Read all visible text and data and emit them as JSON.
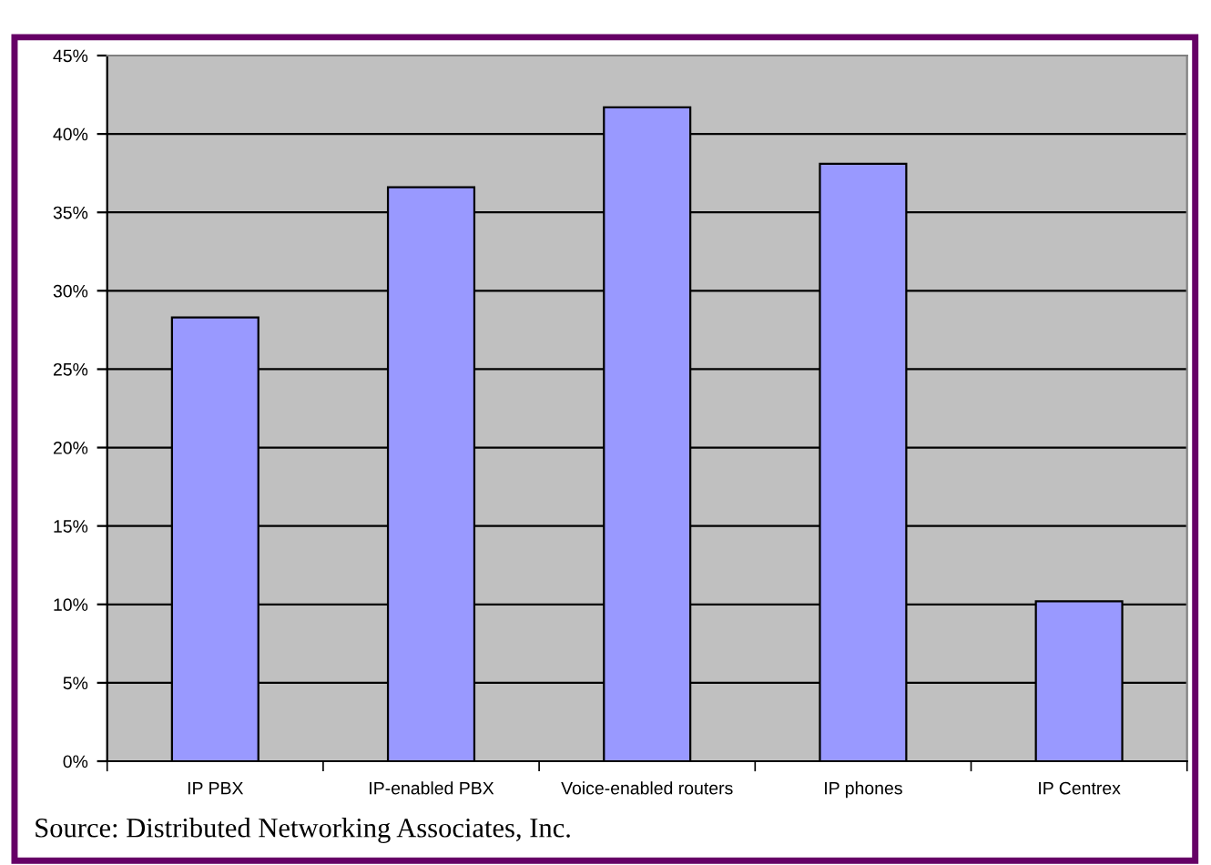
{
  "chart_data": {
    "type": "bar",
    "categories": [
      "IP PBX",
      "IP-enabled PBX",
      "Voice-enabled routers",
      "IP phones",
      "IP Centrex"
    ],
    "values": [
      28.3,
      36.6,
      41.7,
      38.1,
      10.2
    ],
    "color": "#9999ff",
    "ylim": [
      0,
      45
    ],
    "yticks": [
      {
        "value": 0,
        "label": "0%"
      },
      {
        "value": 5,
        "label": "5%"
      },
      {
        "value": 10,
        "label": "10%"
      },
      {
        "value": 15,
        "label": "15%"
      },
      {
        "value": 20,
        "label": "20%"
      },
      {
        "value": 25,
        "label": "25%"
      },
      {
        "value": 30,
        "label": "30%"
      },
      {
        "value": 35,
        "label": "35%"
      },
      {
        "value": 40,
        "label": "40%"
      },
      {
        "value": 45,
        "label": "45%"
      }
    ],
    "grid": "y",
    "annotations": [
      "Source: Distributed Networking Associates, Inc."
    ]
  }
}
